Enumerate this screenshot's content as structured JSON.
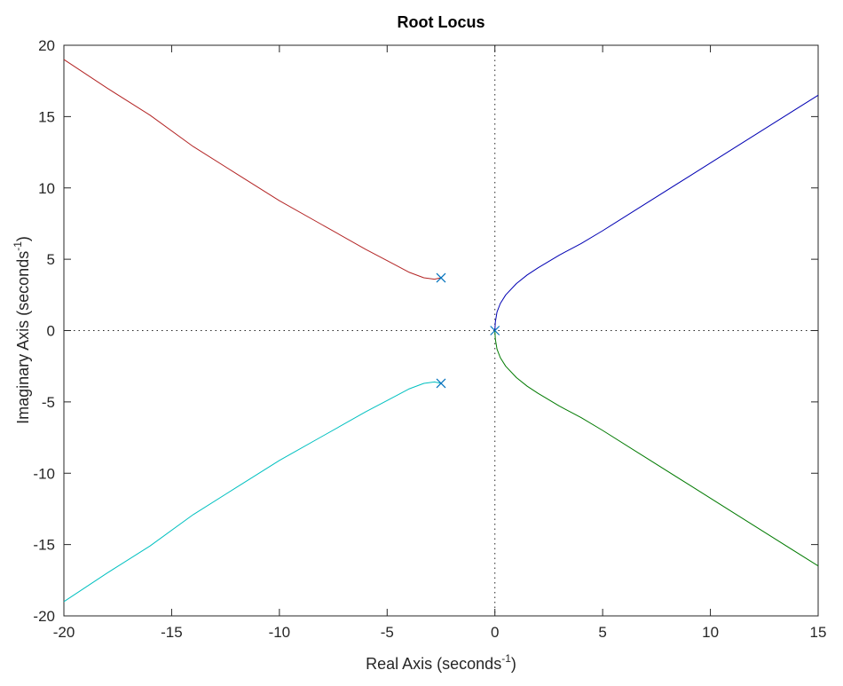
{
  "chart_data": {
    "type": "line",
    "title": "Root Locus",
    "xlabel": {
      "base": "Real Axis (seconds",
      "exp": "-1",
      "close": ")"
    },
    "ylabel": {
      "base": "Imaginary Axis (seconds",
      "exp": "-1",
      "close": ")"
    },
    "xlim": [
      -20,
      15
    ],
    "ylim": [
      -20,
      20
    ],
    "xticks": [
      -20,
      -15,
      -10,
      -5,
      0,
      5,
      10,
      15
    ],
    "yticks": [
      -20,
      -15,
      -10,
      -5,
      0,
      5,
      10,
      15,
      20
    ],
    "xtick_labels": [
      "-20",
      "-15",
      "-10",
      "-5",
      "0",
      "5",
      "10",
      "15"
    ],
    "ytick_labels": [
      "-20",
      "-15",
      "-10",
      "-5",
      "0",
      "5",
      "10",
      "15",
      "20"
    ],
    "grid": false,
    "reference_lines": {
      "x": 0,
      "y": 0,
      "style": "dotted"
    },
    "poles": [
      {
        "x": 0,
        "y": 0
      },
      {
        "x": -2.5,
        "y": 3.7
      },
      {
        "x": -2.5,
        "y": -3.7
      }
    ],
    "series": [
      {
        "color": "#0000b3",
        "x": [
          0,
          0.02,
          0.1,
          0.25,
          0.5,
          1,
          1.5,
          2,
          3,
          4,
          5,
          7,
          9,
          11,
          13,
          15
        ],
        "y": [
          0,
          0.6,
          1.3,
          1.9,
          2.5,
          3.3,
          3.9,
          4.4,
          5.3,
          6.1,
          7,
          8.9,
          10.8,
          12.7,
          14.6,
          16.5
        ]
      },
      {
        "color": "#007a00",
        "x": [
          0,
          0.02,
          0.1,
          0.25,
          0.5,
          1,
          1.5,
          2,
          3,
          4,
          5,
          7,
          9,
          11,
          13,
          15
        ],
        "y": [
          0,
          -0.6,
          -1.3,
          -1.9,
          -2.5,
          -3.3,
          -3.9,
          -4.4,
          -5.3,
          -6.1,
          -7,
          -8.9,
          -10.8,
          -12.7,
          -14.6,
          -16.5
        ]
      },
      {
        "color": "#b32424",
        "x": [
          -2.5,
          -2.8,
          -3.3,
          -4,
          -5,
          -6,
          -8,
          -10,
          -12,
          -14,
          -16,
          -18,
          -20
        ],
        "y": [
          3.7,
          3.6,
          3.7,
          4.1,
          4.9,
          5.7,
          7.4,
          9.1,
          11,
          12.9,
          15.1,
          17,
          19
        ]
      },
      {
        "color": "#00c0c0",
        "x": [
          -2.5,
          -2.8,
          -3.3,
          -4,
          -5,
          -6,
          -8,
          -10,
          -12,
          -14,
          -16,
          -18,
          -20
        ],
        "y": [
          -3.7,
          -3.6,
          -3.7,
          -4.1,
          -4.9,
          -5.7,
          -7.4,
          -9.1,
          -11,
          -12.9,
          -15.1,
          -17,
          -19
        ]
      }
    ],
    "pole_marker": {
      "symbol": "x",
      "color": "#0072bd"
    }
  }
}
